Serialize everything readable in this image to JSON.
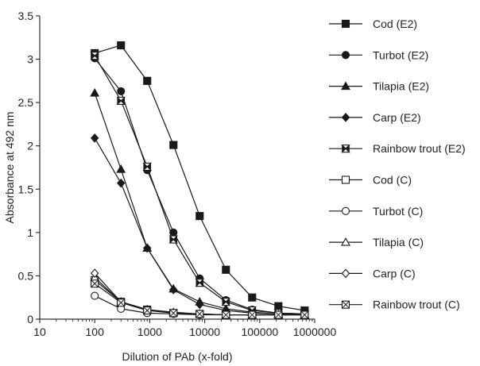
{
  "chart_data": {
    "type": "line",
    "title": "",
    "xlabel": "Dilution of PAb (x-fold)",
    "ylabel": "Absorbance at  492 nm",
    "xscale": "log",
    "xlim": [
      10,
      1000000
    ],
    "ylim": [
      0,
      3.5
    ],
    "xticks": [
      10,
      100,
      1000,
      10000,
      100000,
      1000000
    ],
    "xtick_labels": [
      "10",
      "100",
      "1000",
      "10000",
      "100000",
      "1000000"
    ],
    "yticks": [
      0,
      0.5,
      1,
      1.5,
      2,
      2.5,
      3,
      3.5
    ],
    "ytick_labels": [
      "0",
      "0.5",
      "1",
      "1.5",
      "2",
      "2.5",
      "3",
      "3.5"
    ],
    "grid": false,
    "legend_position": "right",
    "x": [
      100,
      300,
      900,
      2700,
      8100,
      24300,
      72900,
      218700,
      656100
    ],
    "series": [
      {
        "name": "Cod (E2)",
        "marker": "square-filled",
        "values": [
          3.07,
          3.16,
          2.75,
          2.01,
          1.19,
          0.57,
          0.25,
          0.15,
          0.1
        ]
      },
      {
        "name": "Turbot (E2)",
        "marker": "circle-filled",
        "values": [
          3.01,
          2.63,
          1.72,
          1.0,
          0.47,
          0.22,
          0.11,
          0.07,
          0.06
        ]
      },
      {
        "name": "Tilapia (E2)",
        "marker": "triangle-filled",
        "values": [
          2.61,
          1.73,
          0.82,
          0.35,
          0.2,
          0.12,
          0.08,
          0.06,
          0.05
        ]
      },
      {
        "name": "Carp (E2)",
        "marker": "diamond-filled",
        "values": [
          2.09,
          1.57,
          0.82,
          0.34,
          0.17,
          0.1,
          0.07,
          0.06,
          0.05
        ]
      },
      {
        "name": "Rainbow trout (E2)",
        "marker": "hourglass",
        "values": [
          3.04,
          2.52,
          1.76,
          0.92,
          0.42,
          0.2,
          0.1,
          0.07,
          0.06
        ]
      },
      {
        "name": "Cod (C)",
        "marker": "square-open",
        "values": [
          0.45,
          0.2,
          0.11,
          0.07,
          0.06,
          0.05,
          0.05,
          0.05,
          0.05
        ]
      },
      {
        "name": "Turbot (C)",
        "marker": "circle-open",
        "values": [
          0.27,
          0.12,
          0.07,
          0.06,
          0.05,
          0.05,
          0.05,
          0.05,
          0.05
        ]
      },
      {
        "name": "Tilapia (C)",
        "marker": "triangle-open",
        "values": [
          0.48,
          0.2,
          0.11,
          0.08,
          0.06,
          0.05,
          0.05,
          0.05,
          0.05
        ]
      },
      {
        "name": "Carp (C)",
        "marker": "diamond-open",
        "values": [
          0.53,
          0.2,
          0.11,
          0.07,
          0.06,
          0.05,
          0.05,
          0.05,
          0.05
        ]
      },
      {
        "name": "Rainbow trout (C)",
        "marker": "square-x",
        "values": [
          0.41,
          0.19,
          0.1,
          0.07,
          0.06,
          0.05,
          0.05,
          0.05,
          0.05
        ]
      }
    ],
    "colors": {
      "line": "#1a1a1a",
      "axis": "#333333"
    }
  }
}
